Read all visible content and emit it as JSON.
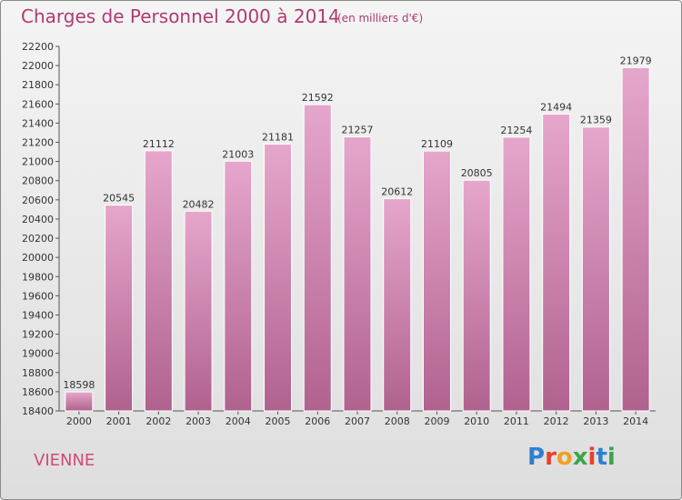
{
  "header": {
    "title": "Charges de Personnel 2000 à 2014",
    "subtitle": "(en milliers d'€)"
  },
  "footer": {
    "location": "VIENNE",
    "logo_letters": [
      "P",
      "r",
      "o",
      "x",
      "i",
      "t",
      "i"
    ],
    "logo_colors": [
      "#2f7fd0",
      "#e8412b",
      "#f0a020",
      "#3aa64a",
      "#e8412b",
      "#2f7fd0",
      "#3aa64a"
    ]
  },
  "chart_data": {
    "type": "bar",
    "title": "Charges de Personnel 2000 à 2014",
    "subtitle": "(en milliers d'€)",
    "categories": [
      "2000",
      "2001",
      "2002",
      "2003",
      "2004",
      "2005",
      "2006",
      "2007",
      "2008",
      "2009",
      "2010",
      "2011",
      "2012",
      "2013",
      "2014"
    ],
    "values": [
      18598,
      20545,
      21112,
      20482,
      21003,
      21181,
      21592,
      21257,
      20612,
      21109,
      20805,
      21254,
      21494,
      21359,
      21979
    ],
    "value_labels": [
      "18598",
      "20545",
      "21112",
      "20482",
      "21003",
      "21181",
      "21592",
      "21257",
      "20612",
      "21109",
      "20805",
      "21254",
      "21494",
      "21359",
      "21979"
    ],
    "ylim": [
      18400,
      22200
    ],
    "yticks": [
      "18400",
      "18600",
      "18800",
      "19000",
      "19200",
      "19400",
      "19600",
      "19800",
      "20000",
      "20200",
      "20400",
      "20600",
      "20800",
      "21000",
      "21200",
      "21400",
      "21600",
      "21800",
      "22000",
      "22200"
    ],
    "grid": false,
    "bar_color": "#c9679f"
  }
}
